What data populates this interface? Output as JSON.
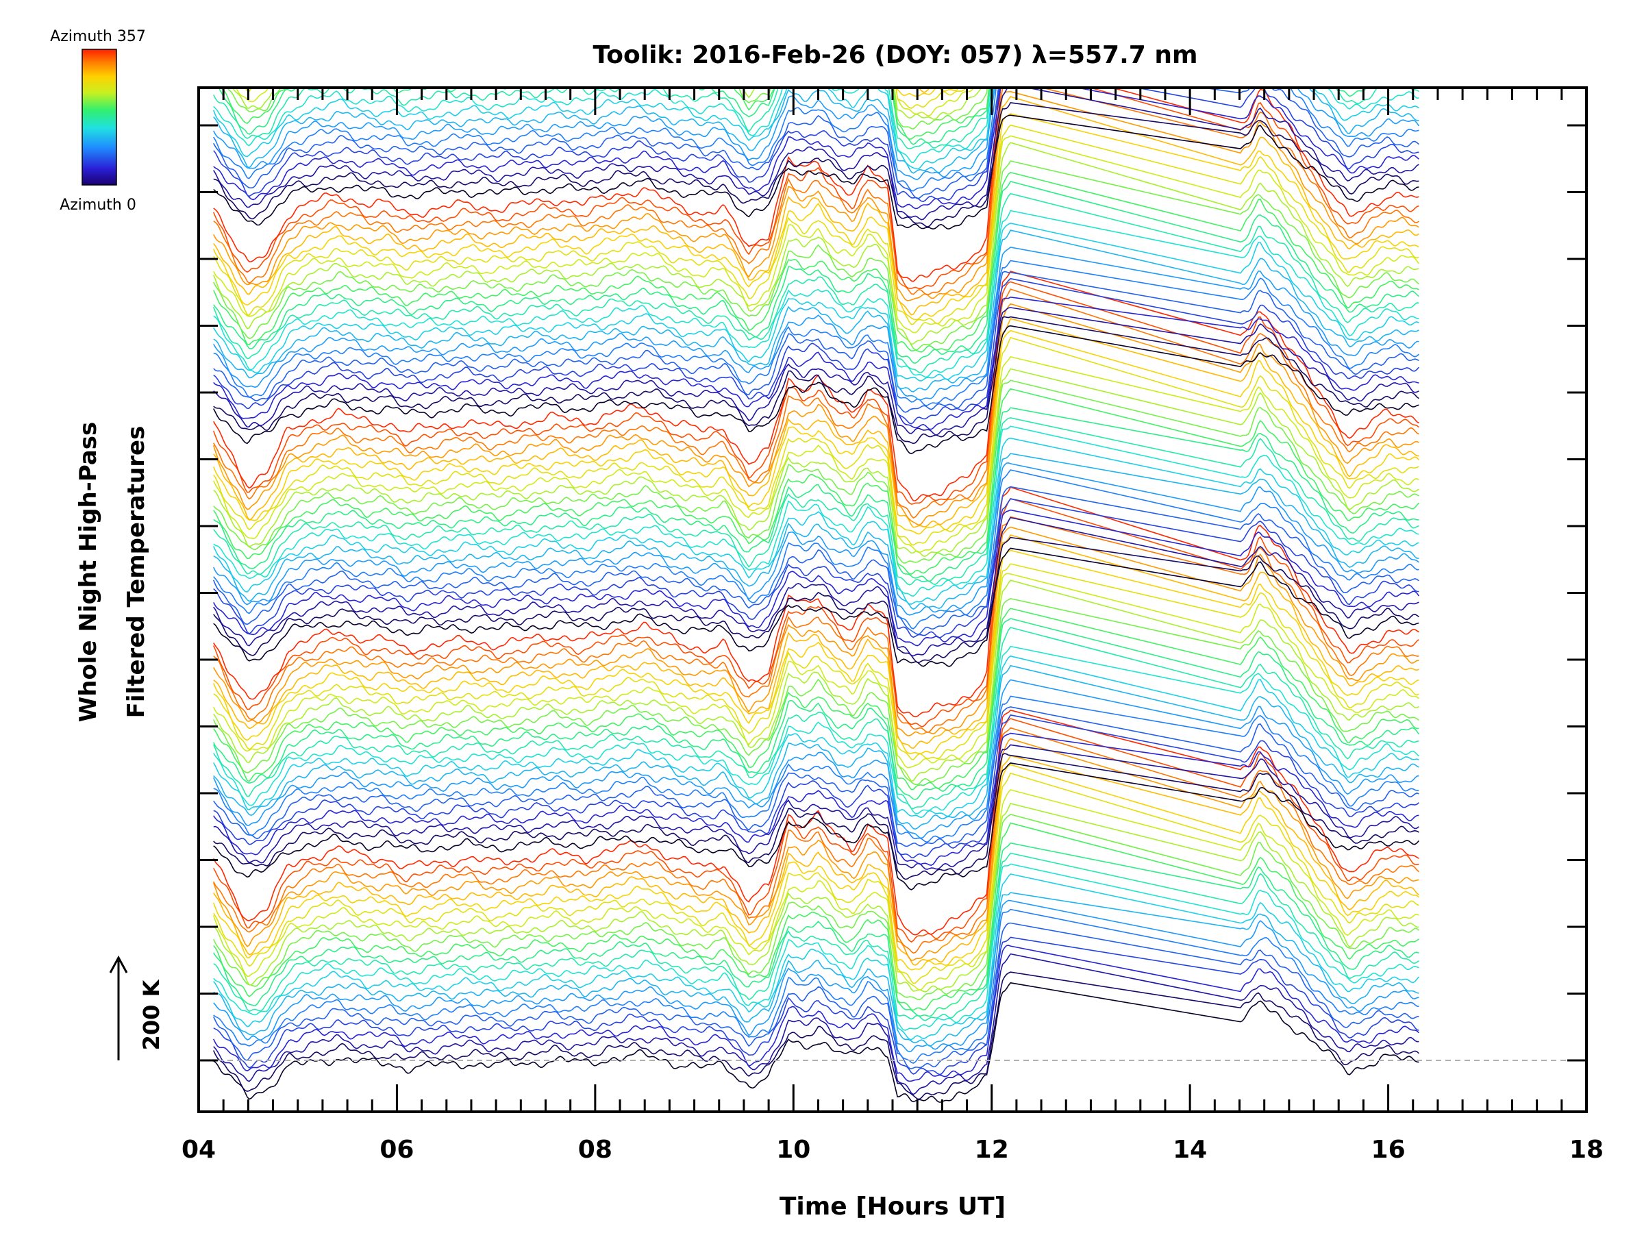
{
  "chart_data": {
    "type": "line",
    "title": "Toolik: 2016-Feb-26 (DOY: 057) λ=557.7 nm",
    "xlabel": "Time [Hours UT]",
    "ylabel_line1": "Whole Night High-Pass",
    "ylabel_line2": "Filtered Temperatures",
    "xlim": [
      4,
      18
    ],
    "x_ticks": [
      "04",
      "06",
      "08",
      "10",
      "12",
      "14",
      "16",
      "18"
    ],
    "x_tick_values": [
      4,
      6,
      8,
      10,
      12,
      14,
      16,
      18
    ],
    "scale_bar_label": "200 K",
    "colorbar": {
      "top_label": "Azimuth 357",
      "bottom_label": "Azimuth 0",
      "min": 0,
      "max": 357,
      "colormap": "rainbow"
    },
    "grid": false,
    "baseline": "dashed-gray",
    "n_series": 144,
    "series_spacing_K": 18,
    "data_start_hour": 4.15,
    "data_end_hour": 16.32,
    "gap_start_hour": 12.2,
    "gap_end_hour": 14.5,
    "common_profile": {
      "x": [
        4.15,
        4.3,
        4.5,
        4.7,
        4.9,
        5.1,
        5.4,
        5.7,
        5.9,
        6.1,
        6.4,
        6.7,
        7.0,
        7.3,
        7.6,
        7.9,
        8.2,
        8.5,
        8.8,
        9.1,
        9.3,
        9.55,
        9.75,
        9.95,
        10.1,
        10.25,
        10.45,
        10.6,
        10.75,
        10.85,
        10.95,
        11.05,
        11.2,
        11.5,
        11.8,
        11.95,
        12.1,
        12.2,
        14.5,
        14.6,
        14.7,
        14.85,
        15.0,
        15.3,
        15.6,
        16.0,
        16.32
      ],
      "y_K": [
        -5,
        -35,
        -70,
        -55,
        -15,
        -5,
        5,
        -5,
        -5,
        -15,
        -10,
        -5,
        -10,
        -5,
        0,
        -5,
        5,
        10,
        -5,
        -15,
        -10,
        -50,
        -35,
        40,
        30,
        40,
        15,
        5,
        30,
        25,
        15,
        -70,
        -85,
        -75,
        -60,
        -40,
        140,
        155,
        80,
        90,
        115,
        95,
        75,
        25,
        -20,
        5,
        0
      ]
    },
    "event_peaks_hours": [
      10.25,
      10.85,
      12.15,
      14.7
    ],
    "baseline_value_K": 0
  }
}
